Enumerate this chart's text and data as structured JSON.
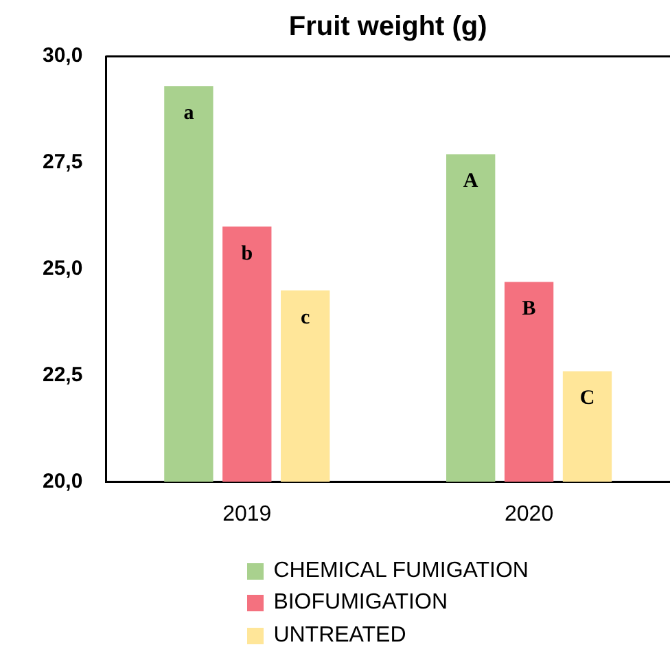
{
  "chart_data": {
    "type": "bar",
    "title": "Fruit weight (g)",
    "categories": [
      "2019",
      "2020"
    ],
    "series": [
      {
        "name": "CHEMICAL FUMIGATION",
        "color": "#a9d18e",
        "values": [
          29.3,
          27.7
        ],
        "value_labels": [
          "a",
          "A"
        ]
      },
      {
        "name": "BIOFUMIGATION",
        "color": "#f4717f",
        "values": [
          26.0,
          24.7
        ],
        "value_labels": [
          "b",
          "B"
        ]
      },
      {
        "name": "UNTREATED",
        "color": "#ffe699",
        "values": [
          24.5,
          22.6
        ],
        "value_labels": [
          "c",
          "C"
        ]
      }
    ],
    "ylim": [
      20,
      30
    ],
    "yticks": [
      {
        "value": 20,
        "label": "20,0"
      },
      {
        "value": 22.5,
        "label": "22,5"
      },
      {
        "value": 25,
        "label": "25,0"
      },
      {
        "value": 27.5,
        "label": "27,5"
      },
      {
        "value": 30,
        "label": "30,0"
      }
    ],
    "grid": false,
    "legend": "bottom"
  }
}
